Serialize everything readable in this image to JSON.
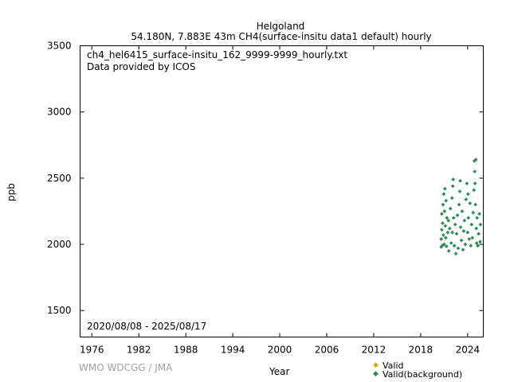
{
  "title": {
    "line1": "Helgoland",
    "line2": "54.180N, 7.883E 43m    CH4(surface-insitu data1 default) hourly"
  },
  "annotations": {
    "filename": "ch4_hel6415_surface-insitu_162_9999-9999_hourly.txt",
    "provider": "Data provided by ICOS",
    "period": "2020/08/08 - 2025/08/17"
  },
  "footer": {
    "credit": "WMO WDCGG / JMA"
  },
  "colors": {
    "valid": "#d4b000",
    "background": "#2e8b57"
  },
  "chart_data": {
    "type": "scatter",
    "xlabel": "Year",
    "ylabel": "ppb",
    "xlim": [
      1974.5,
      2026
    ],
    "ylim": [
      1300,
      3500
    ],
    "xticks": [
      1976,
      1982,
      1988,
      1994,
      2000,
      2006,
      2012,
      2018,
      2024
    ],
    "yticks": [
      1500,
      2000,
      2500,
      3000,
      3500
    ],
    "grid": false,
    "legend": {
      "position": "bottom-right",
      "entries": [
        "Valid",
        "Valid(background)"
      ]
    },
    "series": [
      {
        "name": "Valid",
        "points": []
      },
      {
        "name": "Valid(background)",
        "points": [
          [
            2020.62,
            2040
          ],
          [
            2020.62,
            1980
          ],
          [
            2020.7,
            2110
          ],
          [
            2020.7,
            2230
          ],
          [
            2020.75,
            1990
          ],
          [
            2020.8,
            2160
          ],
          [
            2020.85,
            2300
          ],
          [
            2020.9,
            2070
          ],
          [
            2020.95,
            2380
          ],
          [
            2021.0,
            2000
          ],
          [
            2021.05,
            2250
          ],
          [
            2021.1,
            2420
          ],
          [
            2021.15,
            2140
          ],
          [
            2021.2,
            2050
          ],
          [
            2021.25,
            2330
          ],
          [
            2021.3,
            1985
          ],
          [
            2021.35,
            2200
          ],
          [
            2021.45,
            2090
          ],
          [
            2021.55,
            2180
          ],
          [
            2021.6,
            1950
          ],
          [
            2021.7,
            2120
          ],
          [
            2021.8,
            2270
          ],
          [
            2021.9,
            2010
          ],
          [
            2022.0,
            2350
          ],
          [
            2022.05,
            2090
          ],
          [
            2022.1,
            2440
          ],
          [
            2022.15,
            2490
          ],
          [
            2022.2,
            2200
          ],
          [
            2022.3,
            1990
          ],
          [
            2022.4,
            2150
          ],
          [
            2022.5,
            1930
          ],
          [
            2022.6,
            2080
          ],
          [
            2022.7,
            2220
          ],
          [
            2022.8,
            1970
          ],
          [
            2022.9,
            2300
          ],
          [
            2023.0,
            2400
          ],
          [
            2023.05,
            2480
          ],
          [
            2023.1,
            2130
          ],
          [
            2023.2,
            2030
          ],
          [
            2023.3,
            2250
          ],
          [
            2023.4,
            1960
          ],
          [
            2023.5,
            2100
          ],
          [
            2023.6,
            2180
          ],
          [
            2023.7,
            2000
          ],
          [
            2023.8,
            2340
          ],
          [
            2023.9,
            2460
          ],
          [
            2024.0,
            2090
          ],
          [
            2024.05,
            2380
          ],
          [
            2024.1,
            2200
          ],
          [
            2024.2,
            2040
          ],
          [
            2024.3,
            2310
          ],
          [
            2024.4,
            1990
          ],
          [
            2024.5,
            2150
          ],
          [
            2024.6,
            2050
          ],
          [
            2024.7,
            2240
          ],
          [
            2024.8,
            2410
          ],
          [
            2024.85,
            2630
          ],
          [
            2024.9,
            2550
          ],
          [
            2024.95,
            2460
          ],
          [
            2025.0,
            2300
          ],
          [
            2025.05,
            2640
          ],
          [
            2025.1,
            2120
          ],
          [
            2025.15,
            2010
          ],
          [
            2025.2,
            2200
          ],
          [
            2025.3,
            1990
          ],
          [
            2025.4,
            2080
          ],
          [
            2025.5,
            2230
          ],
          [
            2025.6,
            2020
          ],
          [
            2025.63,
            2150
          ]
        ]
      }
    ]
  }
}
